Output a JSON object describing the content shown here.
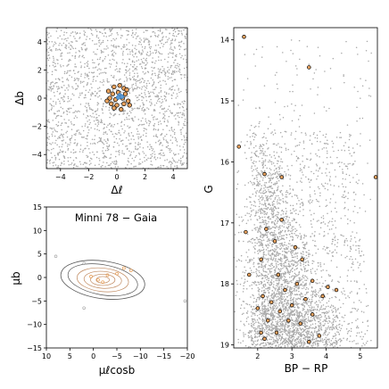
{
  "chart_data": [
    {
      "type": "scatter",
      "panel": "spatial",
      "xlabel": "Δℓ",
      "ylabel": "Δb",
      "xlim": [
        -5,
        5
      ],
      "ylim": [
        -5,
        5
      ],
      "xticks": [
        -4,
        -2,
        0,
        2,
        4
      ],
      "yticks": [
        -4,
        -2,
        0,
        2,
        4
      ],
      "field_density": "dense uniform grey field stars",
      "members": [
        {
          "x": -0.2,
          "y": 0.8
        },
        {
          "x": 0.2,
          "y": 0.9
        },
        {
          "x": 0.5,
          "y": 0.7
        },
        {
          "x": -0.6,
          "y": 0.5
        },
        {
          "x": -0.3,
          "y": 0.3
        },
        {
          "x": 0.1,
          "y": 0.4
        },
        {
          "x": 0.6,
          "y": 0.3
        },
        {
          "x": -0.5,
          "y": 0.0
        },
        {
          "x": -0.1,
          "y": -0.1
        },
        {
          "x": 0.4,
          "y": 0.0
        },
        {
          "x": 0.8,
          "y": -0.2
        },
        {
          "x": -0.4,
          "y": -0.4
        },
        {
          "x": 0.0,
          "y": -0.5
        },
        {
          "x": 0.5,
          "y": -0.4
        },
        {
          "x": 0.9,
          "y": -0.5
        },
        {
          "x": -0.2,
          "y": -0.7
        },
        {
          "x": 0.3,
          "y": -0.8
        },
        {
          "x": 0.7,
          "y": 0.6
        },
        {
          "x": -0.7,
          "y": -0.2
        }
      ],
      "center_markers": [
        {
          "x": 0.2,
          "y": 0.2
        },
        {
          "x": 0.35,
          "y": 0.1
        },
        {
          "x": 0.1,
          "y": 0.05
        }
      ],
      "colors": {
        "field": "#a8a8a8",
        "member": "#e8a25e",
        "center": "#5b9bd5"
      }
    },
    {
      "type": "scatter",
      "panel": "proper-motion",
      "title": "Minni 78  −  Gaia",
      "xlabel": "μℓcosb",
      "ylabel": "μb",
      "xlim": [
        10,
        -20
      ],
      "ylim": [
        -15,
        15
      ],
      "xticks": [
        10,
        5,
        0,
        -5,
        -10,
        -15,
        -20
      ],
      "yticks": [
        -15,
        -10,
        -5,
        0,
        5,
        10,
        15
      ],
      "contour": true,
      "outliers": [
        {
          "x": 8,
          "y": 4.5
        },
        {
          "x": 2,
          "y": 3
        },
        {
          "x": 2,
          "y": -6.5
        },
        {
          "x": -19.5,
          "y": -5
        }
      ],
      "members": [
        {
          "x": -6.5,
          "y": 2
        },
        {
          "x": -8,
          "y": 1.5
        },
        {
          "x": -3,
          "y": 0.5
        },
        {
          "x": -1,
          "y": -0.5
        },
        {
          "x": 0.5,
          "y": 0.2
        },
        {
          "x": -2,
          "y": -1
        },
        {
          "x": -5,
          "y": 0.8
        }
      ],
      "colors": {
        "outlier": "#a8a8a8",
        "member": "#e8a25e",
        "contour": "#555555",
        "contour_inner": "#c08a60"
      }
    },
    {
      "type": "scatter",
      "panel": "cmd",
      "xlabel": "BP − RP",
      "ylabel": "G",
      "xlim": [
        1.3,
        5.5
      ],
      "ylim": [
        19.05,
        13.8
      ],
      "xticks": [
        2,
        3,
        4,
        5
      ],
      "yticks": [
        14,
        15,
        16,
        17,
        18,
        19
      ],
      "members": [
        {
          "x": 1.6,
          "y": 13.95
        },
        {
          "x": 3.5,
          "y": 14.45
        },
        {
          "x": 1.45,
          "y": 15.75
        },
        {
          "x": 2.2,
          "y": 16.2
        },
        {
          "x": 2.7,
          "y": 16.25
        },
        {
          "x": 5.45,
          "y": 16.25
        },
        {
          "x": 1.65,
          "y": 17.15
        },
        {
          "x": 2.7,
          "y": 16.95
        },
        {
          "x": 2.25,
          "y": 17.1
        },
        {
          "x": 2.5,
          "y": 17.3
        },
        {
          "x": 3.1,
          "y": 17.4
        },
        {
          "x": 2.1,
          "y": 17.6
        },
        {
          "x": 3.3,
          "y": 17.6
        },
        {
          "x": 1.75,
          "y": 17.85
        },
        {
          "x": 2.6,
          "y": 17.85
        },
        {
          "x": 3.6,
          "y": 17.95
        },
        {
          "x": 3.15,
          "y": 18.0
        },
        {
          "x": 2.8,
          "y": 18.1
        },
        {
          "x": 4.05,
          "y": 18.05
        },
        {
          "x": 4.3,
          "y": 18.1
        },
        {
          "x": 2.15,
          "y": 18.2
        },
        {
          "x": 3.4,
          "y": 18.25
        },
        {
          "x": 3.9,
          "y": 18.2
        },
        {
          "x": 2.4,
          "y": 18.3
        },
        {
          "x": 3.0,
          "y": 18.35
        },
        {
          "x": 2.0,
          "y": 18.4
        },
        {
          "x": 2.65,
          "y": 18.45
        },
        {
          "x": 3.6,
          "y": 18.5
        },
        {
          "x": 2.3,
          "y": 18.6
        },
        {
          "x": 2.9,
          "y": 18.6
        },
        {
          "x": 3.25,
          "y": 18.65
        },
        {
          "x": 2.1,
          "y": 18.8
        },
        {
          "x": 2.55,
          "y": 18.8
        },
        {
          "x": 3.8,
          "y": 18.85
        },
        {
          "x": 2.2,
          "y": 18.9
        },
        {
          "x": 3.5,
          "y": 18.95
        }
      ],
      "colors": {
        "field": "#a8a8a8",
        "member": "#e8a25e"
      }
    }
  ]
}
